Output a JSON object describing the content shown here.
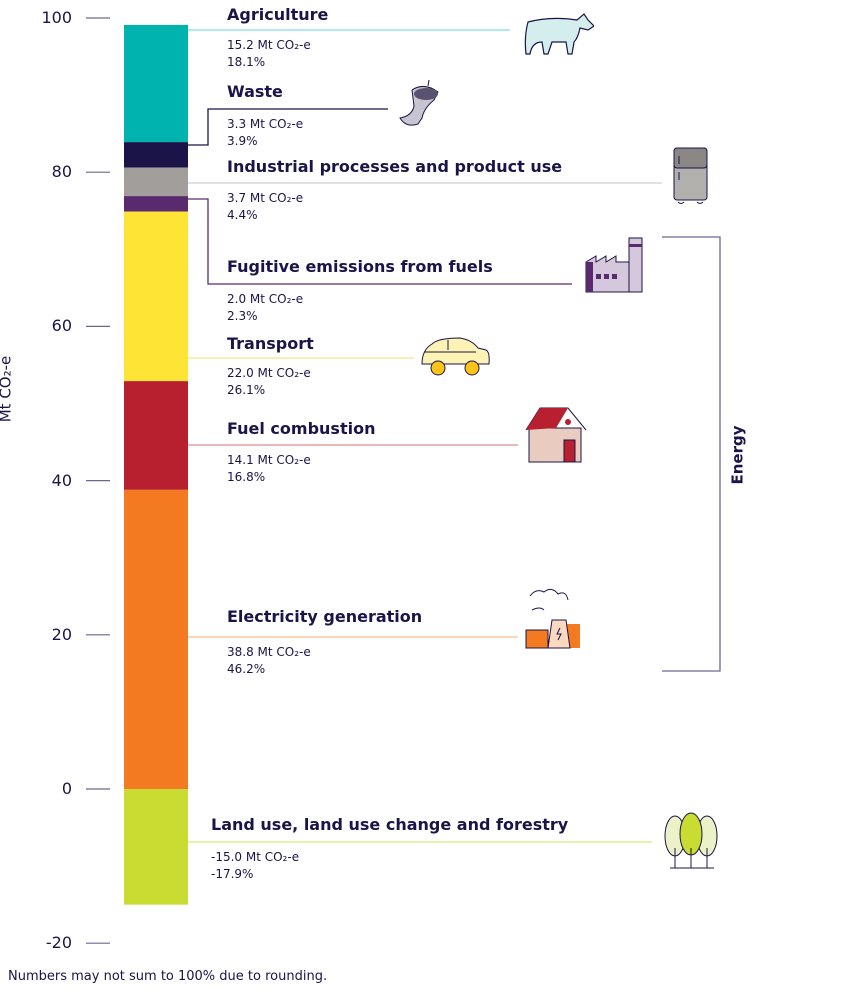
{
  "chart_data": {
    "type": "stacked-bar",
    "ylabel": "Mt CO₂-e",
    "ylim": [
      -20,
      100
    ],
    "yticks": [
      "100",
      "80",
      "60",
      "40",
      "20",
      "0",
      "-20"
    ],
    "grid": false,
    "series": [
      {
        "name": "Agriculture",
        "value": 15.2,
        "value_label": "15.2 Mt CO₂-e",
        "percent": "18.1%",
        "color": "#00b3ae",
        "line_color": "#7fe0de",
        "icon": "cow-icon"
      },
      {
        "name": "Waste",
        "value": 3.3,
        "value_label": "3.3 Mt CO₂-e",
        "percent": "3.9%",
        "color": "#1b1448",
        "line_color": "#1b1448",
        "icon": "apple-core-icon"
      },
      {
        "name": "Industrial processes and product use",
        "value": 3.7,
        "value_label": "3.7 Mt CO₂-e",
        "percent": "4.4%",
        "color": "#a29e9c",
        "line_color": "#d0cecd",
        "icon": "fridge-icon"
      },
      {
        "name": "Fugitive emissions from fuels",
        "value": 2.0,
        "value_label": "2.0 Mt CO₂-e",
        "percent": "2.3%",
        "color": "#5a2a6e",
        "line_color": "#5a2a6e",
        "icon": "factory-icon"
      },
      {
        "name": "Transport",
        "value": 22.0,
        "value_label": "22.0 Mt CO₂-e",
        "percent": "26.1%",
        "color": "#fee535",
        "line_color": "#fbe48a",
        "icon": "car-icon"
      },
      {
        "name": "Fuel combustion",
        "value": 14.1,
        "value_label": "14.1 Mt CO₂-e",
        "percent": "16.8%",
        "color": "#b8202f",
        "line_color": "#e08a90",
        "icon": "house-icon"
      },
      {
        "name": "Electricity generation",
        "value": 38.8,
        "value_label": "38.8 Mt CO₂-e",
        "percent": "46.2%",
        "color": "#f47a22",
        "line_color": "#f9bd92",
        "icon": "power-station-icon"
      },
      {
        "name": "Land use, land use change and forestry",
        "value": -15.0,
        "value_label": "-15.0 Mt CO₂-e",
        "percent": "-17.9%",
        "color": "#c8dc32",
        "line_color": "#dbe97a",
        "icon": "trees-icon"
      }
    ],
    "group": {
      "label": "Energy",
      "members": [
        "Fugitive emissions from fuels",
        "Transport",
        "Fuel combustion",
        "Electricity generation"
      ]
    },
    "note": "Numbers may not sum to 100% due to rounding."
  }
}
